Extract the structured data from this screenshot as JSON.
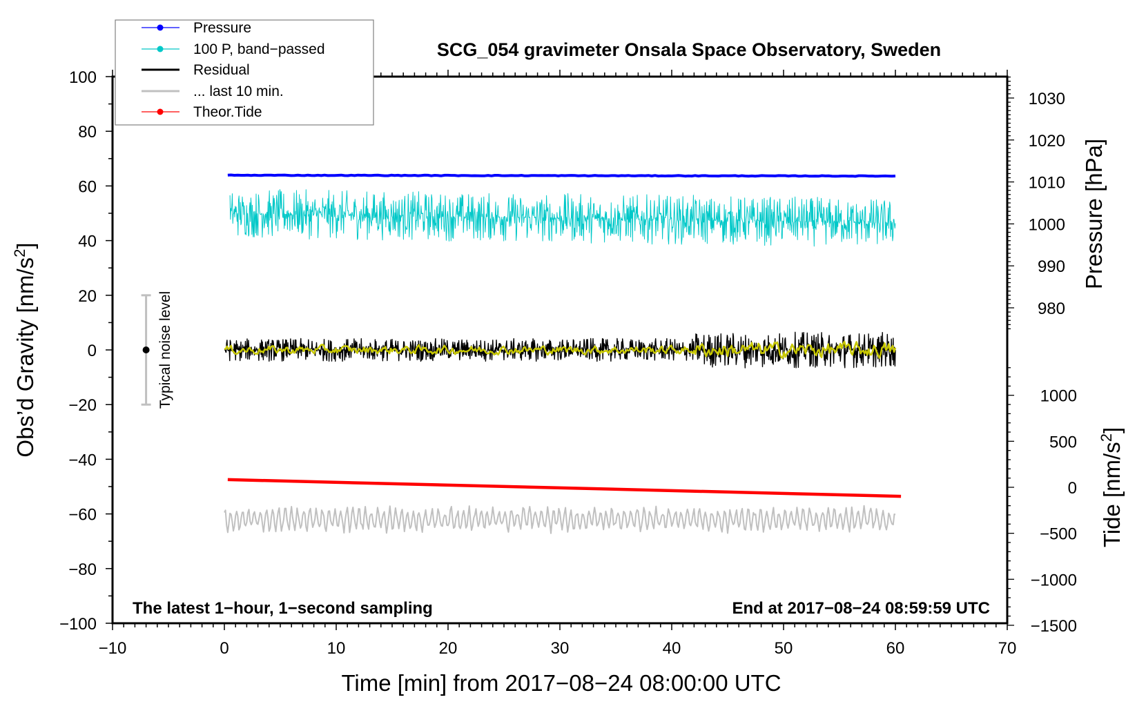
{
  "chart_data": {
    "type": "line",
    "title": "SCG_054 gravimeter Onsala Space Observatory, Sweden",
    "xlabel": "Time [min] from 2017−08−24 08:00:00 UTC",
    "ylabel_left": "Obs’d Gravity [nm/s",
    "ylabel_left_sup": "2",
    "ylabel_left_end": "]",
    "ylabel_right_pressure": "Pressure [hPa]",
    "ylabel_right_tide": "Tide [nm/s",
    "ylabel_right_tide_sup": "2",
    "ylabel_right_tide_end": "]",
    "xlim": [
      -10,
      70
    ],
    "ylim": [
      -100,
      100
    ],
    "pressure_axis_range": [
      975,
      1035
    ],
    "tide_axis_range": [
      -1500,
      1300
    ],
    "xticks": [
      "−10",
      "0",
      "10",
      "20",
      "30",
      "40",
      "50",
      "60",
      "70"
    ],
    "xtick_values": [
      -10,
      0,
      10,
      20,
      30,
      40,
      50,
      60,
      70
    ],
    "yticks": [
      "100",
      "80",
      "60",
      "40",
      "20",
      "0",
      "−20",
      "−40",
      "−60",
      "−80",
      "−100"
    ],
    "ytick_values": [
      100,
      80,
      60,
      40,
      20,
      0,
      -20,
      -40,
      -60,
      -80,
      -100
    ],
    "pressure_ticks": [
      "1030",
      "1020",
      "1010",
      "1000",
      "990",
      "980"
    ],
    "pressure_tick_values": [
      1030,
      1020,
      1010,
      1000,
      990,
      980
    ],
    "tide_ticks": [
      "1000",
      "500",
      "0",
      "−500",
      "−1000",
      "−1500"
    ],
    "tide_tick_values": [
      1000,
      500,
      0,
      -500,
      -1000,
      -1500
    ],
    "grid": false,
    "legend_placement": "top-left",
    "legend": [
      {
        "label": "Pressure",
        "color": "#0000ff",
        "marker": true
      },
      {
        "label": "100 P, band−passed",
        "color": "#00c8c8",
        "marker": true
      },
      {
        "label": "Residual",
        "color": "#000000",
        "marker": false
      },
      {
        "label": "... last 10 min.",
        "color": "#c0c0c0",
        "marker": false
      },
      {
        "label": "Theor.Tide",
        "color": "#ff0000",
        "marker": true
      }
    ],
    "series": [
      {
        "name": "Pressure",
        "axis": "pressure_hPa",
        "color": "#0000ff",
        "x_range": [
          0.3,
          60
        ],
        "start": 1011.6,
        "end": 1011.4
      },
      {
        "name": "100 P, band-passed",
        "axis": "gravity",
        "color": "#00c8c8",
        "x_range": [
          0.5,
          60
        ],
        "mean_start": 50,
        "mean_end": 46.5,
        "noise_amplitude": 7
      },
      {
        "name": "Residual",
        "axis": "gravity",
        "color": "#000000",
        "x_range": [
          0,
          60
        ],
        "mean": 0,
        "noise_amplitude": 3.5,
        "noise_amplitude_late": 5.5
      },
      {
        "name": "Residual smoothed",
        "axis": "gravity",
        "color": "#c8c800",
        "x_range": [
          0,
          60
        ],
        "mean": 0,
        "noise_amplitude": 1.2
      },
      {
        "name": "... last 10 min.",
        "axis": "gravity",
        "color": "#c0c0c0",
        "x_range": [
          0,
          60
        ],
        "mean": -62,
        "noise_amplitude": 4
      },
      {
        "name": "Theor.Tide",
        "axis": "tide_nm_s2",
        "color": "#ff0000",
        "x_range": [
          0.3,
          60.5
        ],
        "start": 83,
        "end": -98
      }
    ],
    "annotations": {
      "noise_label": "Typical noise level",
      "noise_bar": {
        "x": -7,
        "center": 0,
        "low": -20,
        "high": 20
      },
      "bottom_left": "The latest 1−hour, 1−second sampling",
      "bottom_right": "End at 2017−08−24 08:59:59 UTC"
    }
  }
}
